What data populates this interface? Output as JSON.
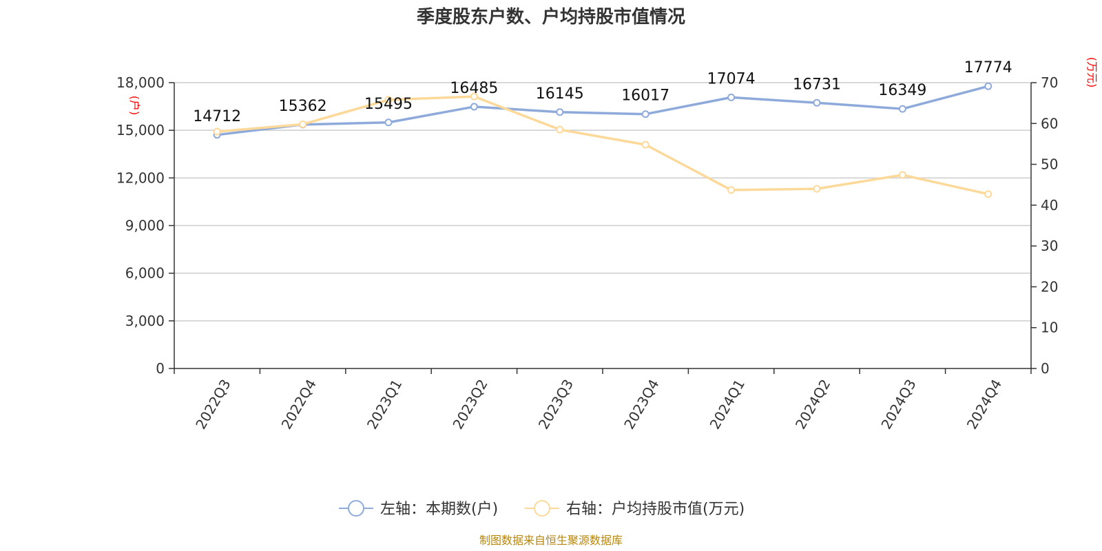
{
  "title": "季度股东户数、户均持股市值情况",
  "source": "制图数据来自恒生聚源数据库",
  "chart_data": {
    "type": "line",
    "title": "季度股东户数、户均持股市值情况",
    "categories": [
      "2022Q3",
      "2022Q4",
      "2023Q1",
      "2023Q2",
      "2023Q3",
      "2023Q4",
      "2024Q1",
      "2024Q2",
      "2024Q3",
      "2024Q4"
    ],
    "left_axis": {
      "unit": "(户)",
      "range": [
        0,
        18000
      ],
      "ticks": [
        "0",
        "3,000",
        "6,000",
        "9,000",
        "12,000",
        "15,000",
        "18,000"
      ],
      "tick_values": [
        0,
        3000,
        6000,
        9000,
        12000,
        15000,
        18000
      ]
    },
    "right_axis": {
      "unit": "(万元)",
      "range": [
        0,
        70
      ],
      "ticks": [
        "0",
        "10",
        "20",
        "30",
        "40",
        "50",
        "60",
        "70"
      ],
      "tick_values": [
        0,
        10,
        20,
        30,
        40,
        50,
        60,
        70
      ]
    },
    "grid": true,
    "legend_position": "bottom",
    "series": [
      {
        "name": "左轴：本期数(户)",
        "axis": "left",
        "color": "#8eaadb",
        "values": [
          14712,
          15362,
          15495,
          16485,
          16145,
          16017,
          17074,
          16731,
          16349,
          17774
        ],
        "labels": [
          "14712",
          "15362",
          "15495",
          "16485",
          "16145",
          "16017",
          "17074",
          "16731",
          "16349",
          "17774"
        ]
      },
      {
        "name": "右轴：户均持股市值(万元)",
        "axis": "right",
        "color": "#fdd999",
        "values": [
          58.0,
          59.8,
          65.8,
          66.6,
          58.5,
          54.8,
          43.7,
          44.0,
          47.4,
          42.7
        ]
      }
    ]
  }
}
